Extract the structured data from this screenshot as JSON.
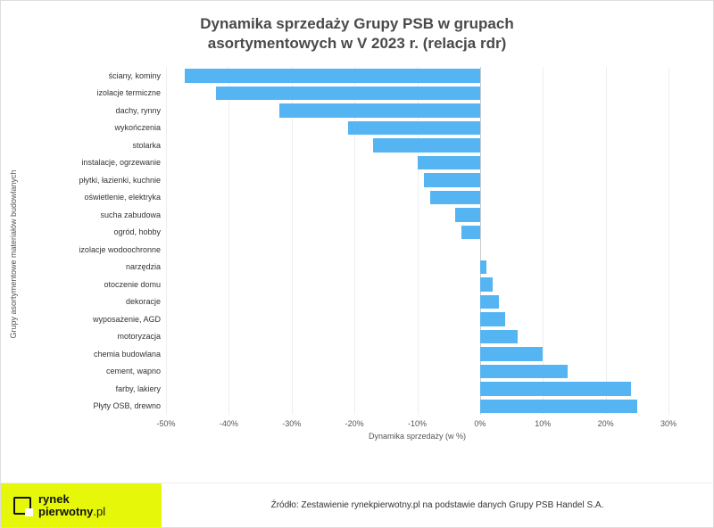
{
  "chart": {
    "type": "bar-horizontal",
    "title_line1": "Dynamika sprzedaży Grupy PSB w grupach",
    "title_line2": "asortymentowych w V 2023 r. (relacja rdr)",
    "title_fontsize": 17,
    "title_color": "#4a4a4a",
    "ylabel": "Grupy asortymentowe materiałów budowlanych",
    "xlabel": "Dynamika sprzedaży (w %)",
    "axis_label_fontsize": 9,
    "tick_fontsize": 9,
    "category_fontsize": 9,
    "background_color": "#ffffff",
    "grid_color": "#eeeeee",
    "zero_line_color": "#cccccc",
    "bar_color": "#55b5f2",
    "xlim": [
      -50,
      30
    ],
    "xtick_step": 10,
    "xticks": [
      {
        "v": -50,
        "label": "-50%"
      },
      {
        "v": -40,
        "label": "-40%"
      },
      {
        "v": -30,
        "label": "-30%"
      },
      {
        "v": -20,
        "label": "-20%"
      },
      {
        "v": -10,
        "label": "-10%"
      },
      {
        "v": 0,
        "label": "0%"
      },
      {
        "v": 10,
        "label": "10%"
      },
      {
        "v": 20,
        "label": "20%"
      },
      {
        "v": 30,
        "label": "30%"
      }
    ],
    "categories": [
      {
        "label": "ściany, kominy",
        "value": -47
      },
      {
        "label": "izolacje termiczne",
        "value": -42
      },
      {
        "label": "dachy, rynny",
        "value": -32
      },
      {
        "label": "wykończenia",
        "value": -21
      },
      {
        "label": "stolarka",
        "value": -17
      },
      {
        "label": "instalacje, ogrzewanie",
        "value": -10
      },
      {
        "label": "płytki, łazienki, kuchnie",
        "value": -9
      },
      {
        "label": "oświetlenie, elektryka",
        "value": -8
      },
      {
        "label": "sucha zabudowa",
        "value": -4
      },
      {
        "label": "ogród, hobby",
        "value": -3
      },
      {
        "label": "izolacje wodoochronne",
        "value": 0
      },
      {
        "label": "narzędzia",
        "value": 1
      },
      {
        "label": "otoczenie domu",
        "value": 2
      },
      {
        "label": "dekoracje",
        "value": 3
      },
      {
        "label": "wyposażenie, AGD",
        "value": 4
      },
      {
        "label": "motoryzacja",
        "value": 6
      },
      {
        "label": "chemia budowlana",
        "value": 10
      },
      {
        "label": "cement, wapno",
        "value": 14
      },
      {
        "label": "farby, lakiery",
        "value": 24
      },
      {
        "label": "Płyty OSB, drewno",
        "value": 25
      }
    ]
  },
  "footer": {
    "logo_bg": "#e6f70a",
    "logo_line1": "rynek",
    "logo_line2": "pierwotny",
    "logo_suffix": ".pl",
    "source": "Źródło: Zestawienie rynekpierwotny.pl na podstawie danych Grupy PSB Handel S.A.",
    "source_fontsize": 10
  }
}
